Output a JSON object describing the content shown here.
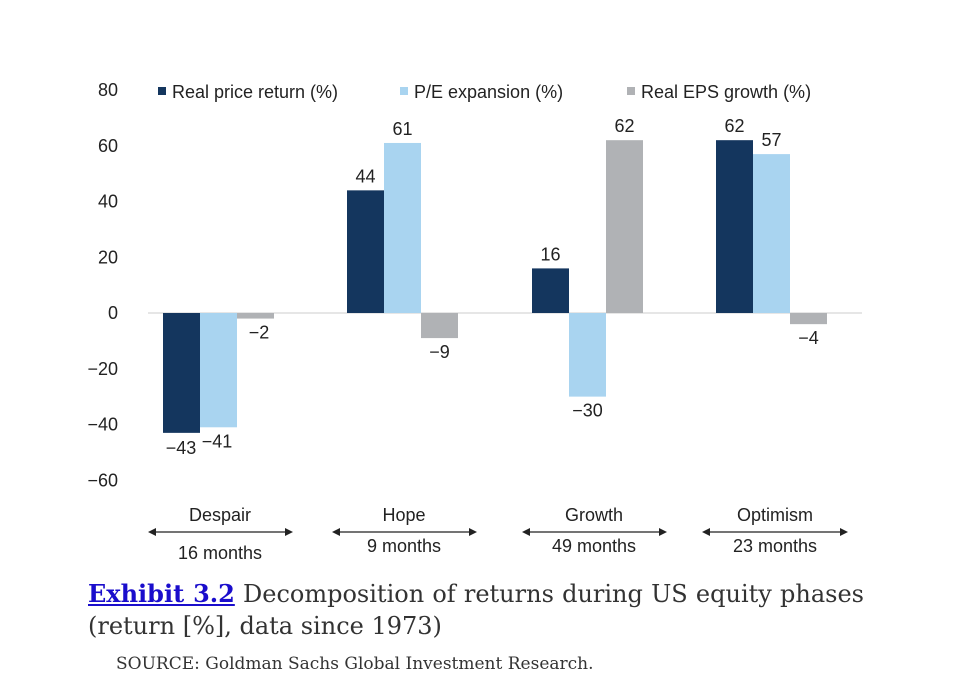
{
  "chart_data": {
    "type": "bar",
    "categories": [
      "Despair",
      "Hope",
      "Growth",
      "Optimism"
    ],
    "durations": [
      "16 months",
      "9 months",
      "49 months",
      "23 months"
    ],
    "series": [
      {
        "name": "Real price return (%)",
        "color": "#14365e",
        "values": [
          -43,
          44,
          16,
          62
        ]
      },
      {
        "name": "P/E expansion (%)",
        "color": "#a9d4f0",
        "values": [
          -41,
          61,
          -30,
          57
        ]
      },
      {
        "name": "Real EPS growth (%)",
        "color": "#b0b2b5",
        "values": [
          -2,
          -9,
          62,
          -4
        ]
      }
    ],
    "ylim": [
      -60,
      80
    ],
    "yticks": [
      80,
      60,
      40,
      20,
      0,
      -20,
      -40,
      -60
    ],
    "grid": false,
    "legend": "top"
  },
  "caption": {
    "label": "Exhibit 3.2",
    "text": " Decomposition of returns during US equity phases (return [%], data since 1973)"
  },
  "source": "SOURCE: Goldman Sachs Global Investment Research."
}
